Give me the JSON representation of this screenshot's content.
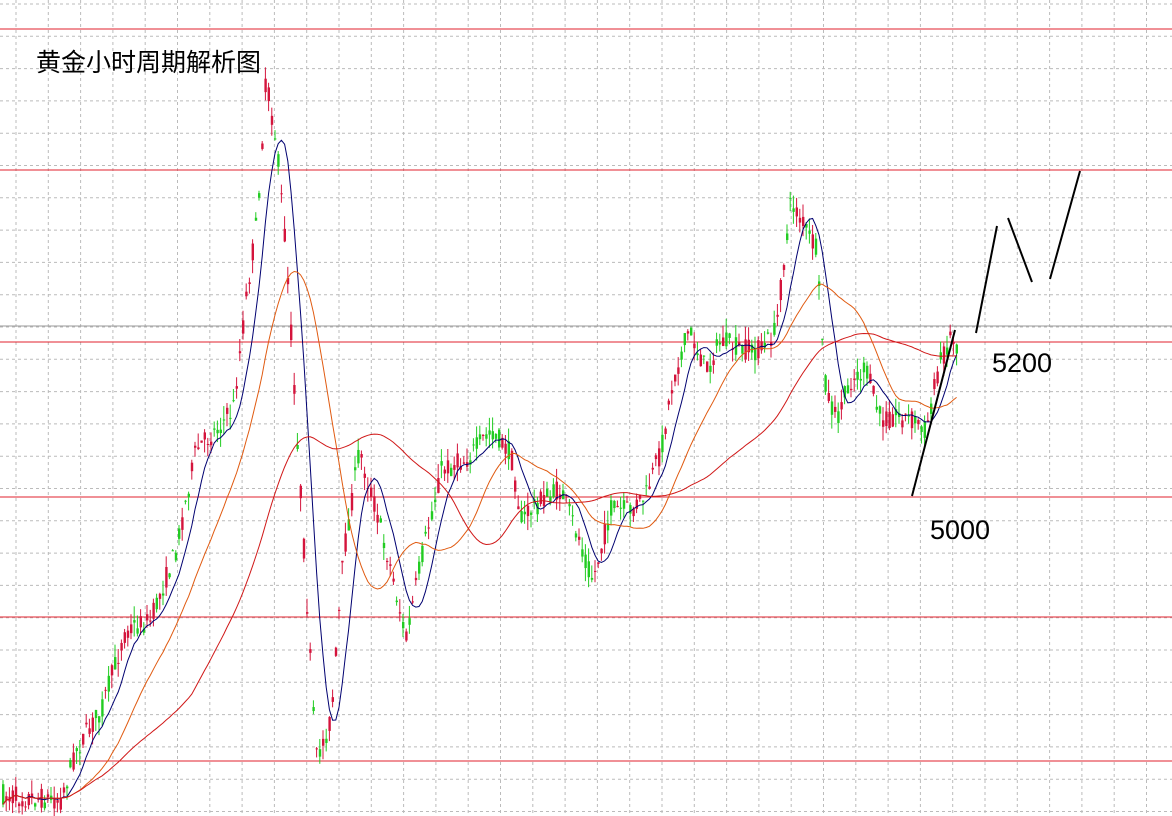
{
  "chart_data": {
    "type": "candlestick",
    "title": "黄金小时周期解析图",
    "grid": true,
    "colors": {
      "up": "#d4143c",
      "down": "#22cc22",
      "level_line": "#e0202c",
      "ma_short": "#000070",
      "ma_mid": "#e05a10",
      "ma_long": "#d01818",
      "grid": "#bbbbbb",
      "forecast": "#000000"
    },
    "annotations": [
      {
        "text": "5200",
        "level": 5200
      },
      {
        "text": "5000",
        "level": 5000
      }
    ]
  }
}
